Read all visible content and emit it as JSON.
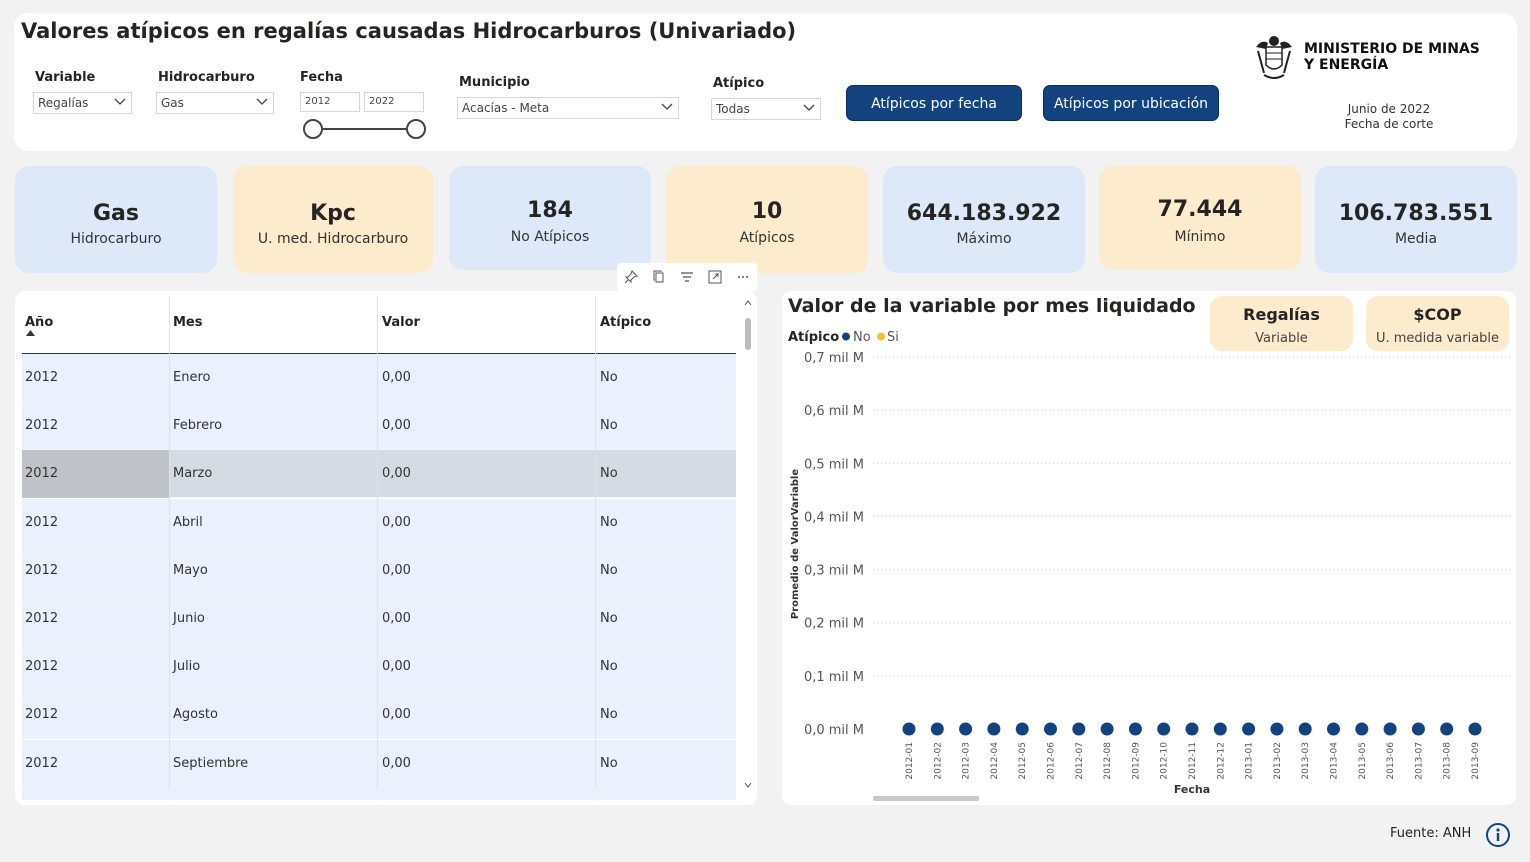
{
  "header": {
    "title": "Valores atípicos en regalías causadas Hidrocarburos (Univariado)",
    "filters": {
      "variable": {
        "label": "Variable",
        "value": "Regalías"
      },
      "hidrocarburo": {
        "label": "Hidrocarburo",
        "value": "Gas"
      },
      "fecha": {
        "label": "Fecha",
        "from": "2012",
        "to": "2022"
      },
      "municipio": {
        "label": "Municipio",
        "value": "Acacías - Meta"
      },
      "atipico": {
        "label": "Atípico",
        "value": "Todas"
      }
    },
    "buttons": {
      "by_date": "Atípicos por fecha",
      "by_location": "Atípicos por ubicación"
    },
    "ministry": {
      "line1": "MINISTERIO DE MINAS",
      "line2": "Y ENERGÍA"
    },
    "cut_date": {
      "value": "Junio de 2022",
      "label": "Fecha de corte"
    }
  },
  "kpis": [
    {
      "value": "Gas",
      "label": "Hidrocarburo",
      "color": "#dde9f9"
    },
    {
      "value": "Kpc",
      "label": "U. med. Hidrocarburo",
      "color": "#fdebcd"
    },
    {
      "value": "184",
      "label": "No Atípicos",
      "color": "#dde9f9"
    },
    {
      "value": "10",
      "label": "Atípicos",
      "color": "#fdebcd"
    },
    {
      "value": "644.183.922",
      "label": "Máximo",
      "color": "#dde9f9"
    },
    {
      "value": "77.444",
      "label": "Mínimo",
      "color": "#fdebcd"
    },
    {
      "value": "106.783.551",
      "label": "Media",
      "color": "#dde9f9"
    }
  ],
  "table": {
    "columns": [
      "Año",
      "Mes",
      "Valor",
      "Atípico"
    ],
    "rows": [
      [
        "2012",
        "Enero",
        "0,00",
        "No"
      ],
      [
        "2012",
        "Febrero",
        "0,00",
        "No"
      ],
      [
        "2012",
        "Marzo",
        "0,00",
        "No"
      ],
      [
        "2012",
        "Abril",
        "0,00",
        "No"
      ],
      [
        "2012",
        "Mayo",
        "0,00",
        "No"
      ],
      [
        "2012",
        "Junio",
        "0,00",
        "No"
      ],
      [
        "2012",
        "Julio",
        "0,00",
        "No"
      ],
      [
        "2012",
        "Agosto",
        "0,00",
        "No"
      ],
      [
        "2012",
        "Septiembre",
        "0,00",
        "No"
      ]
    ],
    "toolbar_icons": [
      "pin-icon",
      "copy-icon",
      "filter-icon",
      "focus-mode-icon",
      "more-options-icon"
    ]
  },
  "chart_panel": {
    "title": "Valor de la variable por mes liquidado",
    "variable_card": {
      "value": "Regalías",
      "label": "Variable"
    },
    "unit_card": {
      "value": "$COP",
      "label": "U. medida variable"
    },
    "legend_title": "Atípico",
    "colors": {
      "no": "#12437f",
      "si": "#f2c12e"
    }
  },
  "chart_data": {
    "type": "scatter",
    "title": "Valor de la variable por mes liquidado",
    "xlabel": "Fecha",
    "ylabel": "Promedio de ValorVariable",
    "y_ticks": [
      "0,0 mil M",
      "0,1 mil M",
      "0,2 mil M",
      "0,3 mil M",
      "0,4 mil M",
      "0,5 mil M",
      "0,6 mil M",
      "0,7 mil M"
    ],
    "ylim": [
      0,
      0.7
    ],
    "y_unit": "mil M",
    "x": [
      "2012-01",
      "2012-02",
      "2012-03",
      "2012-04",
      "2012-05",
      "2012-06",
      "2012-07",
      "2012-08",
      "2012-09",
      "2012-10",
      "2012-11",
      "2012-12",
      "2013-01",
      "2013-02",
      "2013-03",
      "2013-04",
      "2013-05",
      "2013-06",
      "2013-07",
      "2013-08",
      "2013-09"
    ],
    "legend": [
      "No",
      "Si"
    ],
    "legend_placement": "top-left",
    "grid": true,
    "series": [
      {
        "name": "No",
        "values": [
          0,
          0,
          0,
          0,
          0,
          0,
          0,
          0,
          0,
          0,
          0,
          0,
          0,
          0,
          0,
          0,
          0,
          0,
          0,
          0,
          0
        ]
      },
      {
        "name": "Si",
        "values": []
      }
    ]
  },
  "footer": {
    "source": "Fuente: ANH"
  }
}
